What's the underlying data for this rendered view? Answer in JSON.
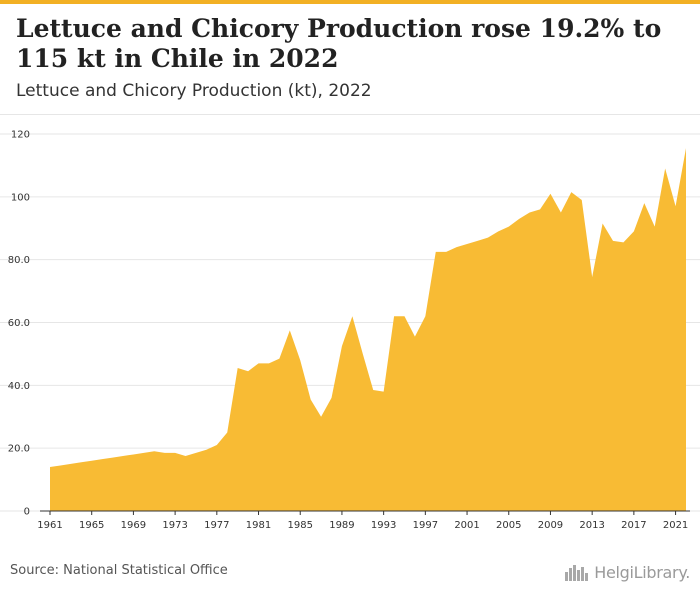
{
  "title": "Lettuce and Chicory Production rose 19.2% to 115 kt in Chile in 2022",
  "subtitle": "Lettuce and Chicory Production (kt), 2022",
  "source": "Source: National Statistical Office",
  "logo": "HelgiLibrary.",
  "colors": {
    "area": "#f8bb34",
    "accent": "#f2b024",
    "grid": "#e6e6e6",
    "axis": "#333333"
  },
  "chart_data": {
    "type": "area",
    "title": "Lettuce and Chicory Production rose 19.2% to 115 kt in Chile in 2022",
    "subtitle": "Lettuce and Chicory Production (kt), 2022",
    "xlabel": "",
    "ylabel": "",
    "ylim": [
      0,
      120
    ],
    "xlim": [
      1961,
      2022
    ],
    "y_ticks": [
      "0",
      "20.0",
      "40.0",
      "60.0",
      "80.0",
      "100",
      "120"
    ],
    "y_tick_values": [
      0,
      20,
      40,
      60,
      80,
      100,
      120
    ],
    "x_ticks": [
      "1961",
      "1965",
      "1969",
      "1973",
      "1977",
      "1981",
      "1985",
      "1989",
      "1993",
      "1997",
      "2001",
      "2005",
      "2009",
      "2013",
      "2017",
      "2021"
    ],
    "grid": true,
    "series": [
      {
        "x": [
          1961,
          1962,
          1963,
          1964,
          1965,
          1966,
          1967,
          1968,
          1969,
          1970,
          1971,
          1972,
          1973,
          1974,
          1975,
          1976,
          1977,
          1978,
          1979,
          1980,
          1981,
          1982,
          1983,
          1984,
          1985,
          1986,
          1987,
          1988,
          1989,
          1990,
          1991,
          1992,
          1993,
          1994,
          1995,
          1996,
          1997,
          1998,
          1999,
          2000,
          2001,
          2002,
          2003,
          2004,
          2005,
          2006,
          2007,
          2008,
          2009,
          2010,
          2011,
          2012,
          2013,
          2014,
          2015,
          2016,
          2017,
          2018,
          2019,
          2020,
          2021,
          2022
        ],
        "values": [
          14,
          14.5,
          15,
          15.5,
          16,
          16.5,
          17,
          17.5,
          18,
          18.5,
          19,
          18.5,
          18.5,
          17.5,
          18.5,
          19.5,
          21,
          25,
          45.5,
          44.5,
          47,
          47,
          48.5,
          57.5,
          48,
          35.5,
          30,
          36,
          52.5,
          62,
          50,
          38.5,
          38,
          62,
          62,
          55.5,
          62,
          82.5,
          82.5,
          84,
          85,
          86,
          87,
          89,
          90.5,
          93,
          95,
          96,
          101,
          95,
          101.5,
          99,
          74.5,
          91.5,
          86,
          85.5,
          89,
          98,
          90.5,
          109,
          97,
          115.5
        ]
      }
    ]
  }
}
